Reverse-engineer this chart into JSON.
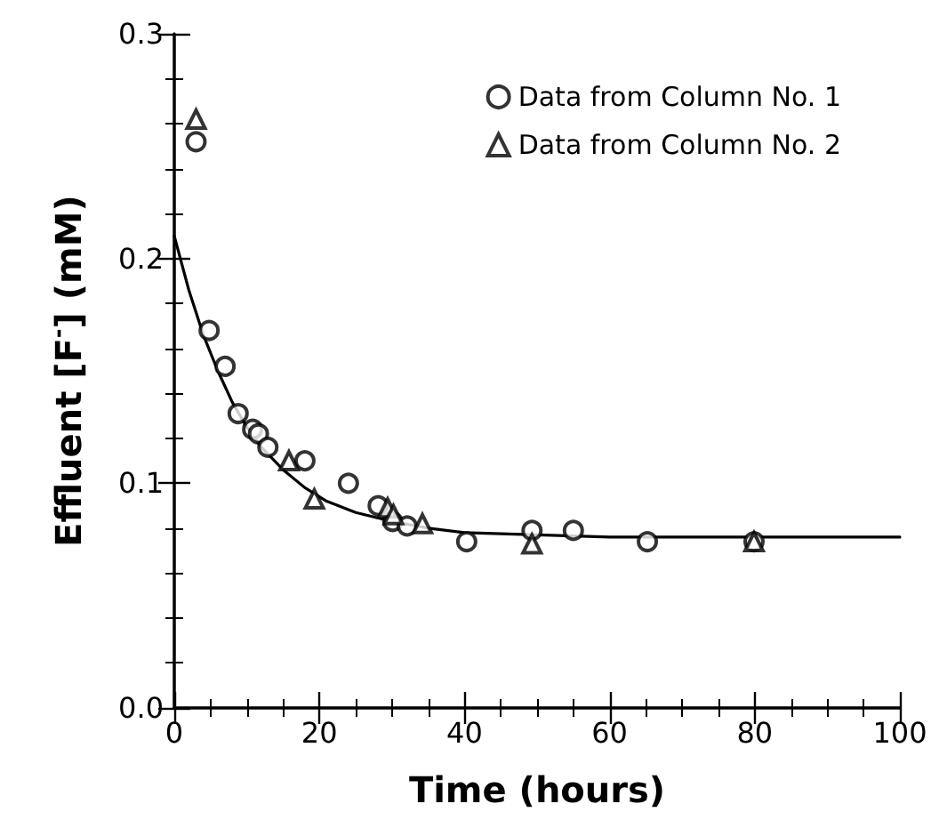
{
  "chart_data": {
    "type": "scatter",
    "xlabel": "Time (hours)",
    "ylabel": "Effluent [F$^{-}$] (mM)",
    "xlim": [
      0,
      100
    ],
    "xticks": [
      0,
      20,
      40,
      60,
      80,
      100
    ],
    "ylim": [
      0,
      0.3
    ],
    "yticks": [
      {
        "value": 0,
        "label": "0.0"
      },
      {
        "value": 0.1,
        "label": "0.1"
      },
      {
        "value": 0.2,
        "label": "0.2"
      },
      {
        "value": 0.3,
        "label": "0.3"
      }
    ],
    "grid": false,
    "legend": "top right",
    "series": [
      {
        "name": "Data from Column No. 1",
        "color": "#000000",
        "marker": "circle",
        "x": [
          3.0,
          4.8,
          7.0,
          8.8,
          10.8,
          11.6,
          12.9,
          18.0,
          24.0,
          28.1,
          30.1,
          32.1,
          40.3,
          49.3,
          55.0,
          65.2,
          79.9
        ],
        "values": [
          0.252,
          0.168,
          0.152,
          0.131,
          0.124,
          0.122,
          0.116,
          0.11,
          0.1,
          0.09,
          0.083,
          0.081,
          0.074,
          0.079,
          0.079,
          0.074,
          0.074
        ]
      },
      {
        "name": "Data from Column No. 2",
        "color": "#000000",
        "marker": "triangle",
        "x": [
          3.0,
          15.8,
          19.3,
          29.4,
          30.2,
          34.2,
          49.3,
          79.9
        ],
        "values": [
          0.262,
          0.11,
          0.093,
          0.089,
          0.086,
          0.082,
          0.073,
          0.074
        ]
      },
      {
        "type": "line",
        "color": "#000000",
        "marker": "none",
        "line_style": "solid",
        "x": [
          0,
          2,
          4,
          6,
          8,
          10,
          12,
          15,
          18,
          21,
          25,
          30,
          35,
          40,
          50,
          60,
          80,
          100
        ],
        "values": [
          0.21,
          0.186,
          0.166,
          0.15,
          0.136,
          0.125,
          0.116,
          0.106,
          0.098,
          0.092,
          0.087,
          0.083,
          0.08,
          0.078,
          0.077,
          0.076,
          0.076,
          0.076
        ]
      }
    ]
  }
}
